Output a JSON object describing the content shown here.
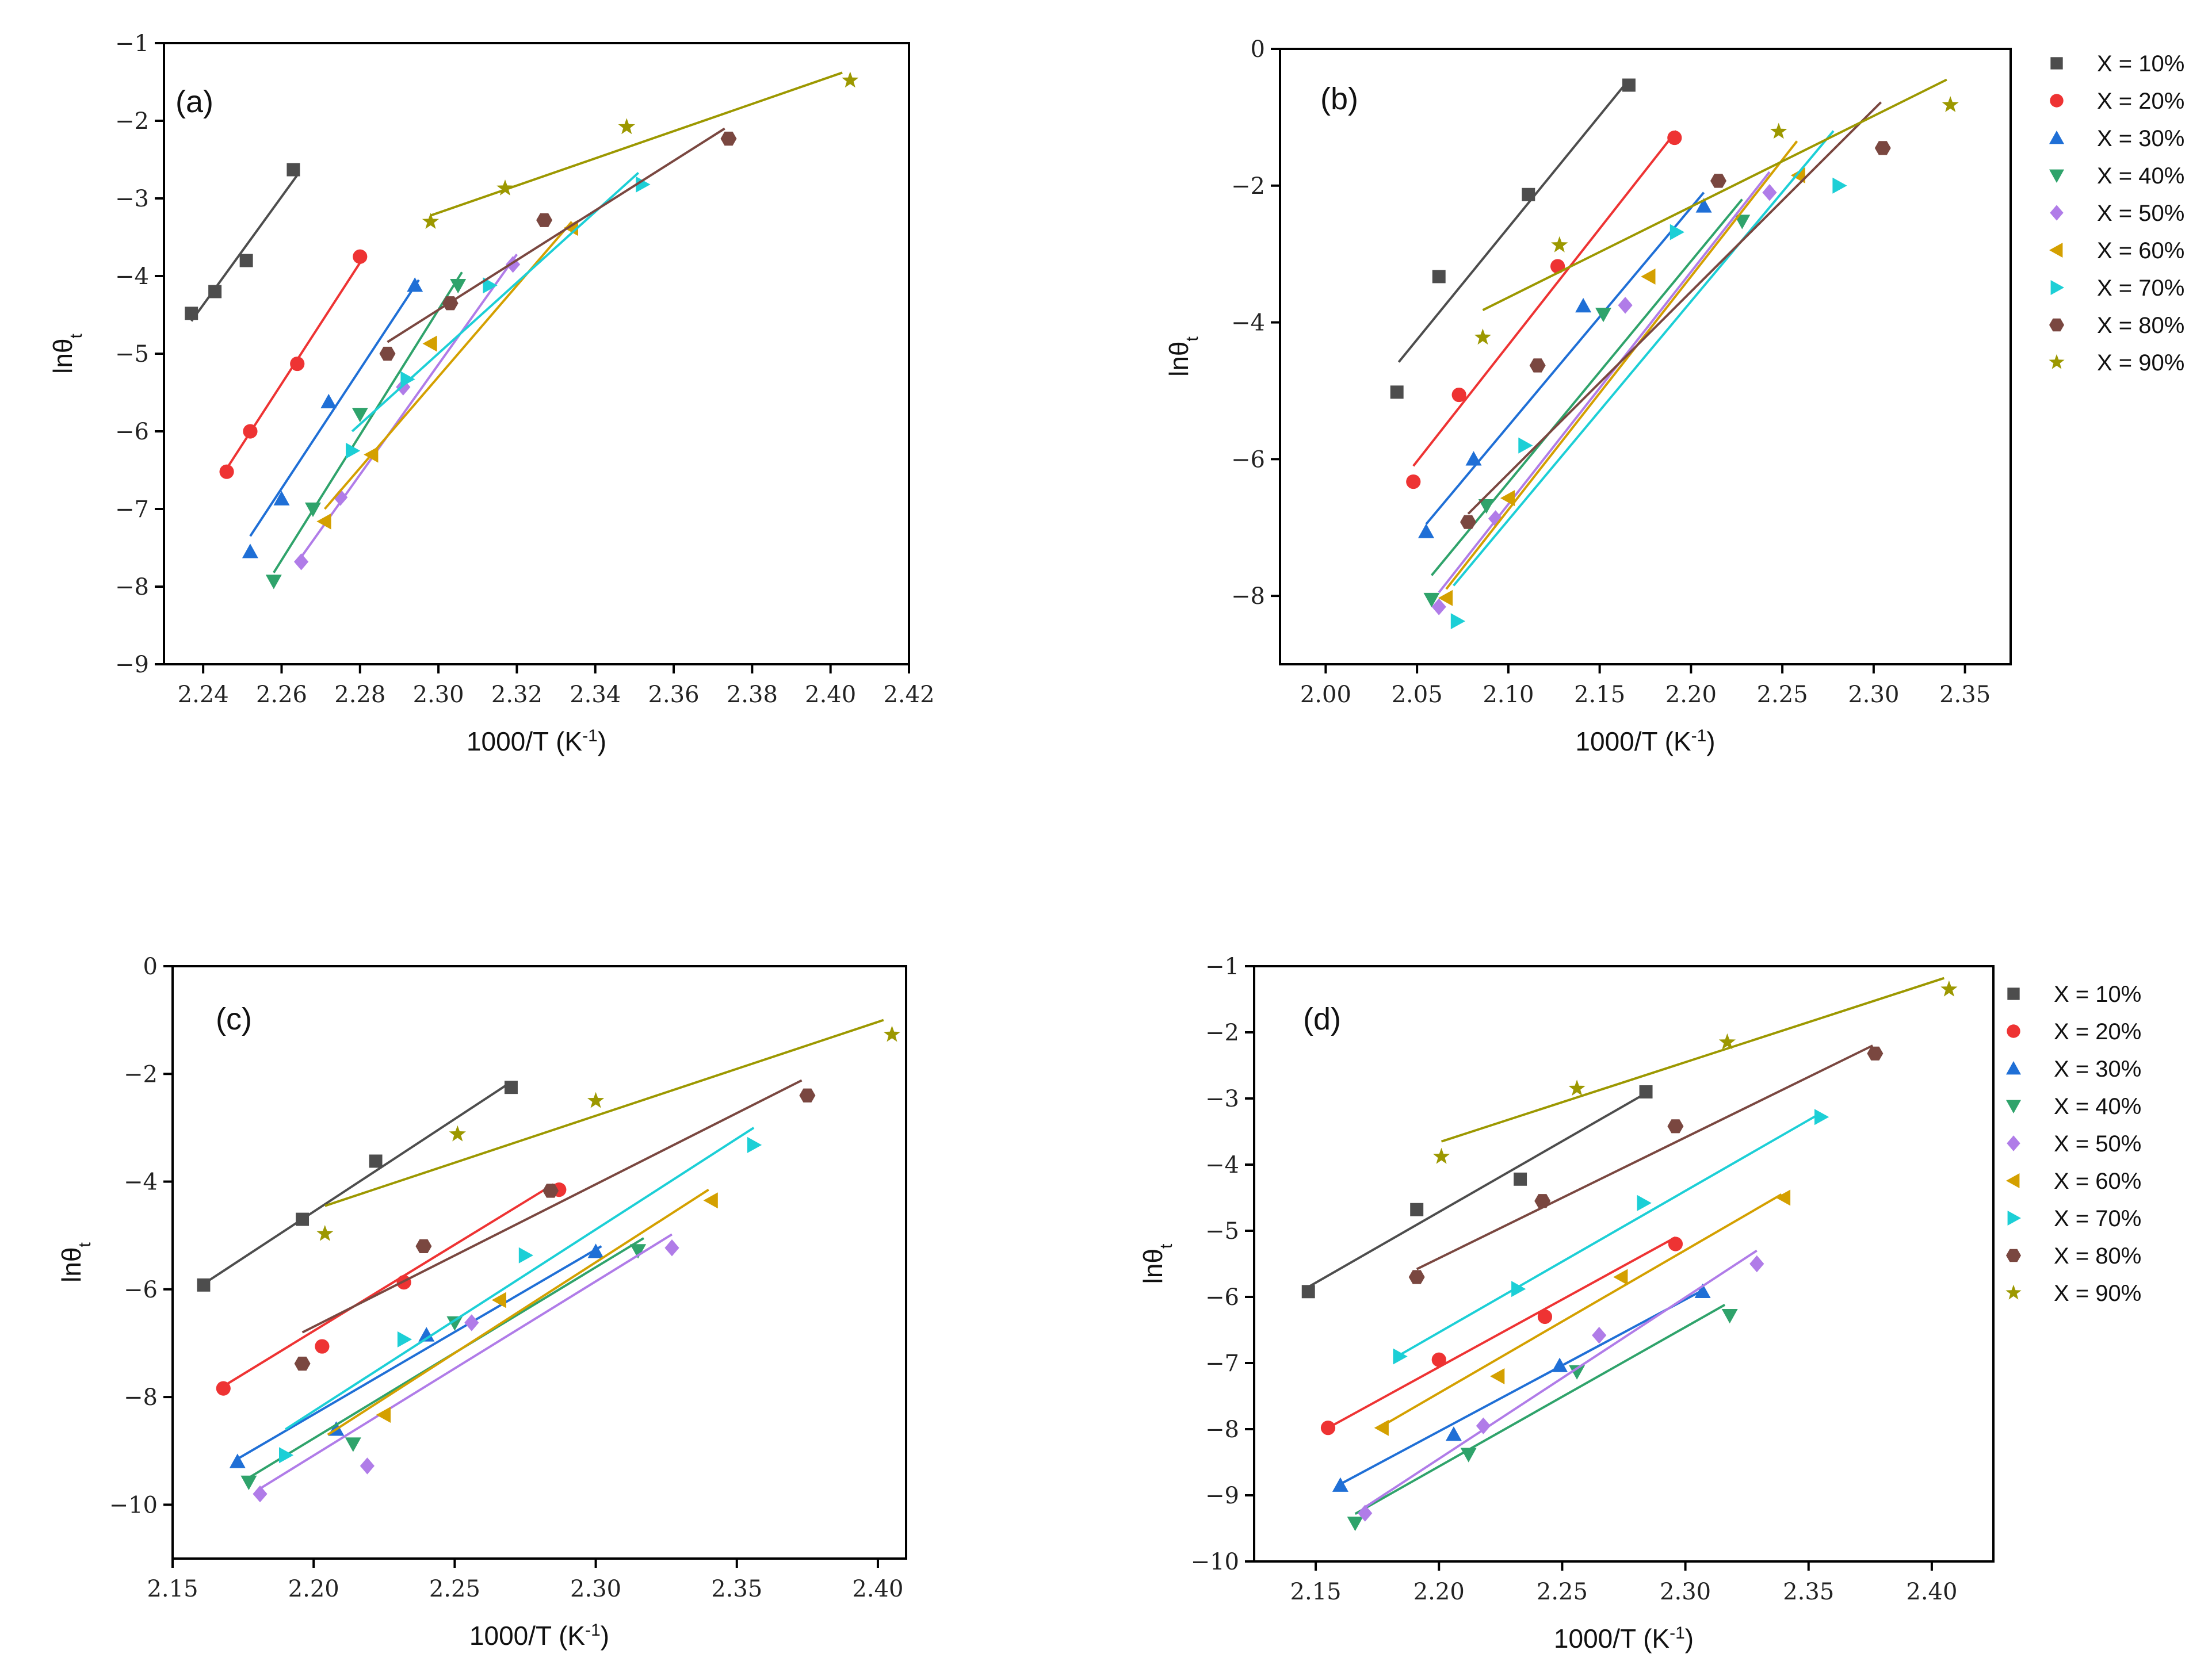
{
  "series_styles": [
    {
      "name": "X = 10%",
      "color": "#4d4d4d",
      "marker": "square"
    },
    {
      "name": "X = 20%",
      "color": "#ee3333",
      "marker": "circle"
    },
    {
      "name": "X = 30%",
      "color": "#1f6fd6",
      "marker": "triangle-up"
    },
    {
      "name": "X = 40%",
      "color": "#2fa36b",
      "marker": "triangle-down"
    },
    {
      "name": "X = 50%",
      "color": "#b07ce8",
      "marker": "diamond"
    },
    {
      "name": "X = 60%",
      "color": "#d4a000",
      "marker": "triangle-left"
    },
    {
      "name": "X = 70%",
      "color": "#1ccfd6",
      "marker": "triangle-right"
    },
    {
      "name": "X = 80%",
      "color": "#7a4740",
      "marker": "hexagon"
    },
    {
      "name": "X = 90%",
      "color": "#9c9800",
      "marker": "star"
    }
  ],
  "chart_data": [
    {
      "type": "scatter",
      "panel_label": "(a)",
      "xlabel": "1000/T (K",
      "xlabel_sup": "-1",
      "xlabel_end": ")",
      "ylabel": "lnθ",
      "ylabel_sub": "t",
      "xlim": [
        2.23,
        2.42
      ],
      "ylim": [
        -9,
        -1
      ],
      "xticks": [
        2.24,
        2.26,
        2.28,
        2.3,
        2.32,
        2.34,
        2.36,
        2.38,
        2.4,
        2.42
      ],
      "yticks": [
        -9,
        -8,
        -7,
        -6,
        -5,
        -4,
        -3,
        -2,
        -1
      ],
      "xtick_labels": [
        "2.24",
        "2.26",
        "2.28",
        "2.30",
        "2.32",
        "2.34",
        "2.36",
        "2.38",
        "2.40",
        "2.42"
      ],
      "ytick_labels": [
        "−9",
        "−8",
        "−7",
        "−6",
        "−5",
        "−4",
        "−3",
        "−2",
        "−1"
      ],
      "legend": false,
      "series": [
        {
          "name": "X = 10%",
          "x": [
            2.237,
            2.243,
            2.251,
            2.263
          ],
          "y": [
            -4.48,
            -4.2,
            -3.8,
            -2.63
          ],
          "fit": [
            [
              2.237,
              -4.58
            ],
            [
              2.264,
              -2.7
            ]
          ]
        },
        {
          "name": "X = 20%",
          "x": [
            2.246,
            2.252,
            2.264,
            2.28
          ],
          "y": [
            -6.52,
            -6.0,
            -5.13,
            -3.75
          ],
          "fit": [
            [
              2.246,
              -6.48
            ],
            [
              2.281,
              -3.75
            ]
          ]
        },
        {
          "name": "X = 30%",
          "x": [
            2.252,
            2.26,
            2.272,
            2.294
          ],
          "y": [
            -7.55,
            -6.87,
            -5.62,
            -4.12
          ],
          "fit": [
            [
              2.252,
              -7.35
            ],
            [
              2.295,
              -4.05
            ]
          ]
        },
        {
          "name": "X = 40%",
          "x": [
            2.258,
            2.268,
            2.28,
            2.305
          ],
          "y": [
            -7.93,
            -7.0,
            -5.78,
            -4.12
          ],
          "fit": [
            [
              2.258,
              -7.82
            ],
            [
              2.306,
              -3.95
            ]
          ]
        },
        {
          "name": "X = 50%",
          "x": [
            2.265,
            2.275,
            2.291,
            2.319
          ],
          "y": [
            -7.68,
            -6.85,
            -5.43,
            -3.85
          ],
          "fit": [
            [
              2.265,
              -7.62
            ],
            [
              2.32,
              -3.72
            ]
          ]
        },
        {
          "name": "X = 60%",
          "x": [
            2.271,
            2.283,
            2.298,
            2.334
          ],
          "y": [
            -7.16,
            -6.3,
            -4.87,
            -3.38
          ],
          "fit": [
            [
              2.271,
              -7.0
            ],
            [
              2.334,
              -3.3
            ]
          ]
        },
        {
          "name": "X = 70%",
          "x": [
            2.278,
            2.292,
            2.313,
            2.352
          ],
          "y": [
            -6.25,
            -5.33,
            -4.12,
            -2.82
          ],
          "fit": [
            [
              2.278,
              -6.0
            ],
            [
              2.351,
              -2.67
            ]
          ]
        },
        {
          "name": "X = 80%",
          "x": [
            2.287,
            2.303,
            2.327,
            2.374
          ],
          "y": [
            -5.0,
            -4.35,
            -3.28,
            -2.23
          ],
          "fit": [
            [
              2.287,
              -4.85
            ],
            [
              2.373,
              -2.1
            ]
          ]
        },
        {
          "name": "X = 90%",
          "x": [
            2.298,
            2.317,
            2.348,
            2.405
          ],
          "y": [
            -3.3,
            -2.87,
            -2.08,
            -1.48
          ],
          "fit": [
            [
              2.298,
              -3.22
            ],
            [
              2.403,
              -1.38
            ]
          ]
        }
      ]
    },
    {
      "type": "scatter",
      "panel_label": "(b)",
      "xlabel": "1000/T (K",
      "xlabel_sup": "-1",
      "xlabel_end": ")",
      "ylabel": "lnθ",
      "ylabel_sub": "t",
      "xlim": [
        1.975,
        2.375
      ],
      "ylim": [
        -9,
        0
      ],
      "xticks": [
        2.0,
        2.05,
        2.1,
        2.15,
        2.2,
        2.25,
        2.3,
        2.35
      ],
      "yticks": [
        -8,
        -6,
        -4,
        -2,
        0
      ],
      "xtick_labels": [
        "2.00",
        "2.05",
        "2.10",
        "2.15",
        "2.20",
        "2.25",
        "2.30",
        "2.35"
      ],
      "ytick_labels": [
        "−8",
        "−6",
        "−4",
        "−2",
        "0"
      ],
      "legend": true,
      "series": [
        {
          "name": "X = 10%",
          "x": [
            2.039,
            2.062,
            2.111,
            2.166
          ],
          "y": [
            -5.02,
            -3.33,
            -2.13,
            -0.53
          ],
          "fit": [
            [
              2.04,
              -4.58
            ],
            [
              2.166,
              -0.45
            ]
          ]
        },
        {
          "name": "X = 20%",
          "x": [
            2.048,
            2.073,
            2.127,
            2.191
          ],
          "y": [
            -6.33,
            -5.06,
            -3.18,
            -1.3
          ],
          "fit": [
            [
              2.048,
              -6.1
            ],
            [
              2.192,
              -1.2
            ]
          ]
        },
        {
          "name": "X = 30%",
          "x": [
            2.055,
            2.081,
            2.141,
            2.207
          ],
          "y": [
            -7.06,
            -6.0,
            -3.76,
            -2.3
          ],
          "fit": [
            [
              2.055,
              -6.95
            ],
            [
              2.207,
              -2.1
            ]
          ]
        },
        {
          "name": "X = 40%",
          "x": [
            2.058,
            2.088,
            2.152,
            2.228
          ],
          "y": [
            -8.05,
            -6.68,
            -3.88,
            -2.52
          ],
          "fit": [
            [
              2.058,
              -7.7
            ],
            [
              2.228,
              -2.2
            ]
          ]
        },
        {
          "name": "X = 50%",
          "x": [
            2.062,
            2.093,
            2.164,
            2.243
          ],
          "y": [
            -8.16,
            -6.87,
            -3.75,
            -2.1
          ],
          "fit": [
            [
              2.062,
              -7.95
            ],
            [
              2.243,
              -1.8
            ]
          ]
        },
        {
          "name": "X = 60%",
          "x": [
            2.066,
            2.1,
            2.177,
            2.259
          ],
          "y": [
            -8.03,
            -6.57,
            -3.33,
            -1.85
          ],
          "fit": [
            [
              2.066,
              -7.9
            ],
            [
              2.258,
              -1.35
            ]
          ]
        },
        {
          "name": "X = 70%",
          "x": [
            2.072,
            2.109,
            2.192,
            2.281
          ],
          "y": [
            -8.37,
            -5.8,
            -2.68,
            -2.0
          ],
          "fit": [
            [
              2.07,
              -7.85
            ],
            [
              2.278,
              -1.2
            ]
          ]
        },
        {
          "name": "X = 80%",
          "x": [
            2.078,
            2.116,
            2.215,
            2.305
          ],
          "y": [
            -6.92,
            -4.63,
            -1.93,
            -1.45
          ],
          "fit": [
            [
              2.078,
              -6.8
            ],
            [
              2.304,
              -0.78
            ]
          ]
        },
        {
          "name": "X = 90%",
          "x": [
            2.086,
            2.128,
            2.248,
            2.342
          ],
          "y": [
            -4.22,
            -2.87,
            -1.21,
            -0.82
          ],
          "fit": [
            [
              2.086,
              -3.82
            ],
            [
              2.34,
              -0.45
            ]
          ]
        }
      ]
    },
    {
      "type": "scatter",
      "panel_label": "(c)",
      "xlabel": "1000/T (K",
      "xlabel_sup": "-1",
      "xlabel_end": ")",
      "ylabel": "lnθ",
      "ylabel_sub": "t",
      "xlim": [
        2.15,
        2.41
      ],
      "ylim": [
        -11,
        0
      ],
      "xticks": [
        2.15,
        2.2,
        2.25,
        2.3,
        2.35,
        2.4
      ],
      "yticks": [
        -10,
        -8,
        -6,
        -4,
        -2,
        0
      ],
      "xtick_labels": [
        "2.15",
        "2.20",
        "2.25",
        "2.30",
        "2.35",
        "2.40"
      ],
      "ytick_labels": [
        "−10",
        "−8",
        "−6",
        "−4",
        "−2",
        "0"
      ],
      "legend": false,
      "series": [
        {
          "name": "X = 10%",
          "x": [
            2.161,
            2.196,
            2.222,
            2.27
          ],
          "y": [
            -5.92,
            -4.7,
            -3.62,
            -2.25
          ],
          "fit": [
            [
              2.161,
              -5.9
            ],
            [
              2.27,
              -2.15
            ]
          ]
        },
        {
          "name": "X = 20%",
          "x": [
            2.168,
            2.203,
            2.232,
            2.287
          ],
          "y": [
            -7.84,
            -7.06,
            -5.87,
            -4.15
          ],
          "fit": [
            [
              2.168,
              -7.8
            ],
            [
              2.285,
              -4.05
            ]
          ]
        },
        {
          "name": "X = 30%",
          "x": [
            2.173,
            2.208,
            2.24,
            2.3
          ],
          "y": [
            -9.2,
            -8.6,
            -6.85,
            -5.3
          ],
          "fit": [
            [
              2.173,
              -9.15
            ],
            [
              2.302,
              -5.2
            ]
          ]
        },
        {
          "name": "X = 40%",
          "x": [
            2.177,
            2.214,
            2.25,
            2.315
          ],
          "y": [
            -9.58,
            -8.87,
            -6.62,
            -5.28
          ],
          "fit": [
            [
              2.177,
              -9.5
            ],
            [
              2.317,
              -5.05
            ]
          ]
        },
        {
          "name": "X = 50%",
          "x": [
            2.181,
            2.219,
            2.256,
            2.327
          ],
          "y": [
            -9.8,
            -9.28,
            -6.62,
            -5.23
          ],
          "fit": [
            [
              2.181,
              -9.7
            ],
            [
              2.327,
              -4.98
            ]
          ]
        },
        {
          "name": "X = 60%",
          "x": [
            2.225,
            2.266,
            2.341
          ],
          "y": [
            -8.33,
            -6.2,
            -4.35
          ],
          "fit": [
            [
              2.205,
              -8.7
            ],
            [
              2.34,
              -4.15
            ]
          ]
        },
        {
          "name": "X = 70%",
          "x": [
            2.19,
            2.232,
            2.275,
            2.356
          ],
          "y": [
            -9.08,
            -6.93,
            -5.37,
            -3.32
          ],
          "fit": [
            [
              2.19,
              -8.6
            ],
            [
              2.356,
              -3.0
            ]
          ]
        },
        {
          "name": "X = 80%",
          "x": [
            2.196,
            2.239,
            2.284,
            2.375
          ],
          "y": [
            -7.38,
            -5.2,
            -4.17,
            -2.4
          ],
          "fit": [
            [
              2.196,
              -6.8
            ],
            [
              2.373,
              -2.12
            ]
          ]
        },
        {
          "name": "X = 90%",
          "x": [
            2.204,
            2.251,
            2.3,
            2.405
          ],
          "y": [
            -4.97,
            -3.12,
            -2.5,
            -1.27
          ],
          "fit": [
            [
              2.204,
              -4.45
            ],
            [
              2.402,
              -1.0
            ]
          ]
        }
      ]
    },
    {
      "type": "scatter",
      "panel_label": "(d)",
      "xlabel": "1000/T (K",
      "xlabel_sup": "-1",
      "xlabel_end": ")",
      "ylabel": "lnθ",
      "ylabel_sub": "t",
      "xlim": [
        2.125,
        2.425
      ],
      "ylim": [
        -10,
        -1
      ],
      "xticks": [
        2.15,
        2.2,
        2.25,
        2.3,
        2.35,
        2.4
      ],
      "yticks": [
        -10,
        -9,
        -8,
        -7,
        -6,
        -5,
        -4,
        -3,
        -2,
        -1
      ],
      "xtick_labels": [
        "2.15",
        "2.20",
        "2.25",
        "2.30",
        "2.35",
        "2.40"
      ],
      "ytick_labels": [
        "−10",
        "−9",
        "−8",
        "−7",
        "−6",
        "−5",
        "−4",
        "−3",
        "−2",
        "−1"
      ],
      "legend": true,
      "series": [
        {
          "name": "X = 10%",
          "x": [
            2.147,
            2.191,
            2.233,
            2.284
          ],
          "y": [
            -5.92,
            -4.68,
            -4.22,
            -2.9
          ],
          "fit": [
            [
              2.147,
              -5.85
            ],
            [
              2.284,
              -2.92
            ]
          ]
        },
        {
          "name": "X = 20%",
          "x": [
            2.155,
            2.2,
            2.243,
            2.296
          ],
          "y": [
            -7.98,
            -6.95,
            -6.3,
            -5.2
          ],
          "fit": [
            [
              2.155,
              -7.98
            ],
            [
              2.296,
              -5.1
            ]
          ]
        },
        {
          "name": "X = 30%",
          "x": [
            2.16,
            2.206,
            2.249,
            2.307
          ],
          "y": [
            -8.85,
            -8.08,
            -7.04,
            -5.92
          ],
          "fit": [
            [
              2.16,
              -8.83
            ],
            [
              2.308,
              -5.88
            ]
          ]
        },
        {
          "name": "X = 40%",
          "x": [
            2.166,
            2.212,
            2.256,
            2.318
          ],
          "y": [
            -9.42,
            -8.38,
            -7.13,
            -6.28
          ],
          "fit": [
            [
              2.166,
              -9.28
            ],
            [
              2.316,
              -6.12
            ]
          ]
        },
        {
          "name": "X = 50%",
          "x": [
            2.17,
            2.218,
            2.265,
            2.329
          ],
          "y": [
            -9.27,
            -7.95,
            -6.58,
            -5.5
          ],
          "fit": [
            [
              2.17,
              -9.18
            ],
            [
              2.329,
              -5.3
            ]
          ]
        },
        {
          "name": "X = 60%",
          "x": [
            2.177,
            2.224,
            2.274,
            2.34
          ],
          "y": [
            -7.98,
            -7.2,
            -5.7,
            -4.5
          ],
          "fit": [
            [
              2.177,
              -7.95
            ],
            [
              2.339,
              -4.45
            ]
          ]
        },
        {
          "name": "X = 70%",
          "x": [
            2.184,
            2.232,
            2.283,
            2.355
          ],
          "y": [
            -6.9,
            -5.88,
            -4.58,
            -3.28
          ],
          "fit": [
            [
              2.184,
              -6.88
            ],
            [
              2.355,
              -3.22
            ]
          ]
        },
        {
          "name": "X = 80%",
          "x": [
            2.191,
            2.242,
            2.296,
            2.377
          ],
          "y": [
            -5.7,
            -4.55,
            -3.42,
            -2.32
          ],
          "fit": [
            [
              2.191,
              -5.58
            ],
            [
              2.376,
              -2.2
            ]
          ]
        },
        {
          "name": "X = 90%",
          "x": [
            2.201,
            2.256,
            2.317,
            2.407
          ],
          "y": [
            -3.88,
            -2.85,
            -2.15,
            -1.35
          ],
          "fit": [
            [
              2.201,
              -3.65
            ],
            [
              2.405,
              -1.18
            ]
          ]
        }
      ]
    }
  ]
}
